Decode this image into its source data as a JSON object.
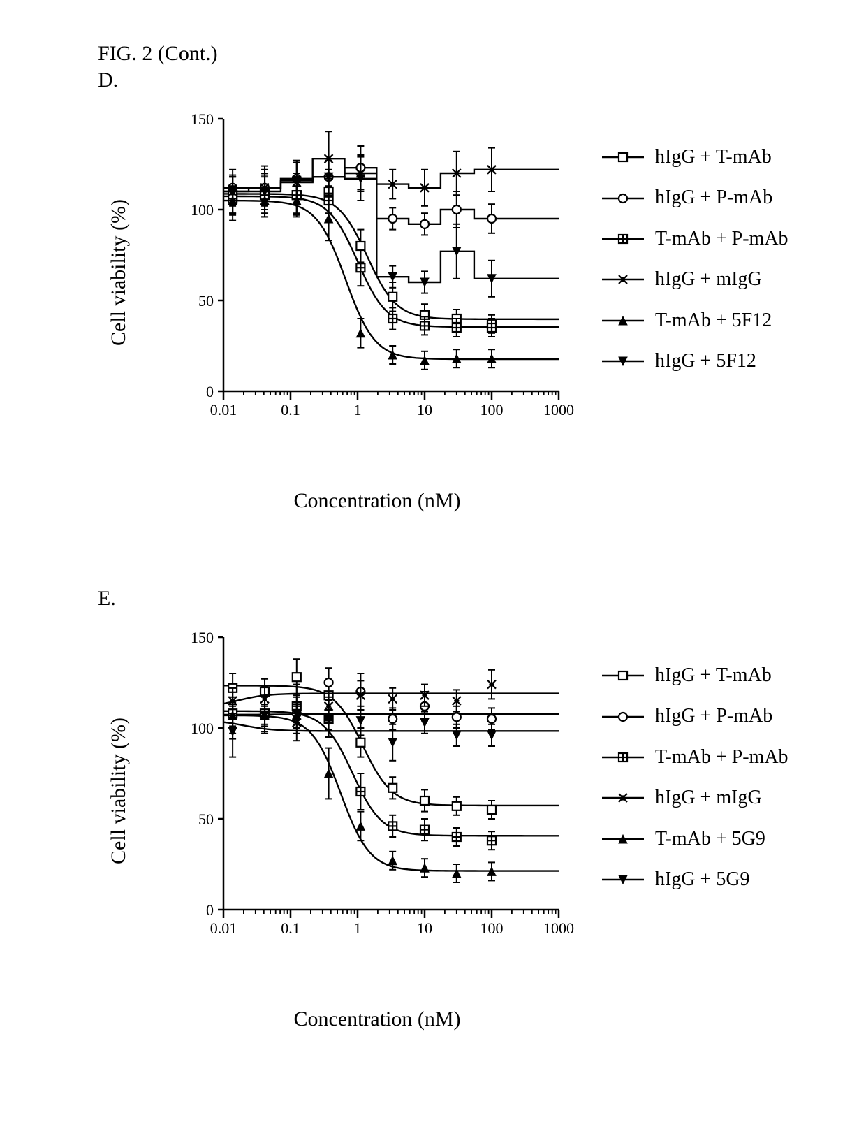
{
  "figure_title": "FIG. 2 (Cont.)",
  "colors": {
    "background": "#ffffff",
    "ink": "#000000",
    "axis": "#000000",
    "series": "#000000"
  },
  "fonts": {
    "family": "Times New Roman",
    "title_size_pt": 22,
    "axis_label_size_pt": 22,
    "tick_size_pt": 18,
    "legend_size_pt": 20
  },
  "axis_common": {
    "xlabel": "Concentration (nM)",
    "ylabel": "Cell viability (%)",
    "xscale": "log10",
    "xlim": [
      0.01,
      1000
    ],
    "x_ticks": [
      0.01,
      0.1,
      1,
      10,
      100,
      1000
    ],
    "x_tick_labels": [
      "0.01",
      "0.1",
      "1",
      "10",
      "100",
      "1000"
    ],
    "ylim": [
      0,
      150
    ],
    "y_ticks": [
      0,
      50,
      100,
      150
    ],
    "grid": false,
    "tick_len": 8,
    "axis_line_width": 2.5
  },
  "panels": [
    {
      "id": "D",
      "label": "D.",
      "series": [
        {
          "name": "hIgG + T-mAb",
          "marker": "square-open",
          "marker_size": 12,
          "line_style": "curve",
          "x": [
            0.0137,
            0.0412,
            0.1235,
            0.3704,
            1.111,
            3.333,
            10,
            30,
            100
          ],
          "y": [
            108,
            110,
            108,
            110,
            80,
            52,
            42,
            40,
            37
          ],
          "err": [
            10,
            12,
            10,
            12,
            9,
            8,
            6,
            5,
            5
          ]
        },
        {
          "name": "hIgG + P-mAb",
          "marker": "circle-open",
          "marker_size": 12,
          "line_style": "step",
          "x": [
            0.0137,
            0.0412,
            0.1235,
            0.3704,
            1.111,
            3.333,
            10,
            30,
            100
          ],
          "y": [
            112,
            112,
            117,
            118,
            123,
            95,
            92,
            100,
            95
          ],
          "err": [
            7,
            7,
            10,
            9,
            12,
            6,
            6,
            10,
            8
          ]
        },
        {
          "name": "T-mAb + P-mAb",
          "marker": "square-crossed",
          "marker_size": 12,
          "line_style": "curve",
          "x": [
            0.0137,
            0.0412,
            0.1235,
            0.3704,
            1.111,
            3.333,
            10,
            30,
            100
          ],
          "y": [
            106,
            108,
            108,
            105,
            68,
            40,
            36,
            35,
            35
          ],
          "err": [
            12,
            12,
            12,
            12,
            10,
            6,
            5,
            5,
            5
          ]
        },
        {
          "name": "hIgG + mIgG",
          "marker": "x-star",
          "marker_size": 12,
          "line_style": "step",
          "x": [
            0.0137,
            0.0412,
            0.1235,
            0.3704,
            1.111,
            3.333,
            10,
            30,
            100
          ],
          "y": [
            110,
            112,
            115,
            128,
            120,
            114,
            112,
            120,
            122
          ],
          "err": [
            12,
            12,
            12,
            15,
            10,
            8,
            10,
            12,
            12
          ]
        },
        {
          "name": "T-mAb + 5F12",
          "marker": "triangle-up-filled",
          "marker_size": 12,
          "line_style": "curve",
          "x": [
            0.0137,
            0.0412,
            0.1235,
            0.3704,
            1.111,
            3.333,
            10,
            30,
            100
          ],
          "y": [
            105,
            105,
            105,
            95,
            32,
            20,
            17,
            18,
            18
          ],
          "err": [
            8,
            9,
            8,
            12,
            8,
            5,
            5,
            5,
            5
          ]
        },
        {
          "name": "hIgG + 5F12",
          "marker": "triangle-down-filled",
          "marker_size": 12,
          "line_style": "step",
          "x": [
            0.0137,
            0.0412,
            0.1235,
            0.3704,
            1.111,
            3.333,
            10,
            30,
            100
          ],
          "y": [
            110,
            110,
            116,
            118,
            117,
            63,
            60,
            77,
            62
          ],
          "err": [
            8,
            8,
            10,
            10,
            12,
            6,
            6,
            15,
            10
          ]
        }
      ]
    },
    {
      "id": "E",
      "label": "E.",
      "series": [
        {
          "name": "hIgG + T-mAb",
          "marker": "square-open",
          "marker_size": 12,
          "line_style": "curve",
          "x": [
            0.0137,
            0.0412,
            0.1235,
            0.3704,
            1.111,
            3.333,
            10,
            30,
            100
          ],
          "y": [
            122,
            120,
            128,
            118,
            92,
            67,
            60,
            57,
            55
          ],
          "err": [
            8,
            7,
            10,
            8,
            8,
            6,
            6,
            5,
            5
          ]
        },
        {
          "name": "hIgG + P-mAb",
          "marker": "circle-open",
          "marker_size": 12,
          "line_style": "curve",
          "x": [
            0.0137,
            0.0412,
            0.1235,
            0.3704,
            1.111,
            3.333,
            10,
            30,
            100
          ],
          "y": [
            107,
            107,
            108,
            125,
            120,
            105,
            112,
            106,
            105
          ],
          "err": [
            6,
            5,
            5,
            8,
            10,
            6,
            8,
            6,
            6
          ]
        },
        {
          "name": "T-mAb + P-mAb",
          "marker": "square-crossed",
          "marker_size": 12,
          "line_style": "curve",
          "x": [
            0.0137,
            0.0412,
            0.1235,
            0.3704,
            1.111,
            3.333,
            10,
            30,
            100
          ],
          "y": [
            108,
            108,
            112,
            105,
            65,
            46,
            44,
            40,
            38
          ],
          "err": [
            14,
            10,
            12,
            10,
            10,
            6,
            6,
            5,
            5
          ]
        },
        {
          "name": "hIgG + mIgG",
          "marker": "x-star",
          "marker_size": 12,
          "line_style": "curve",
          "x": [
            0.0137,
            0.0412,
            0.1235,
            0.3704,
            1.111,
            3.333,
            10,
            30,
            100
          ],
          "y": [
            115,
            116,
            103,
            112,
            118,
            116,
            118,
            115,
            124
          ],
          "err": [
            7,
            7,
            10,
            8,
            8,
            6,
            6,
            6,
            8
          ]
        },
        {
          "name": "T-mAb + 5G9",
          "marker": "triangle-up-filled",
          "marker_size": 12,
          "line_style": "curve",
          "x": [
            0.0137,
            0.0412,
            0.1235,
            0.3704,
            1.111,
            3.333,
            10,
            30,
            100
          ],
          "y": [
            107,
            107,
            107,
            75,
            46,
            27,
            23,
            20,
            21
          ],
          "err": [
            10,
            10,
            10,
            14,
            8,
            5,
            5,
            5,
            5
          ]
        },
        {
          "name": "hIgG + 5G9",
          "marker": "triangle-down-filled",
          "marker_size": 12,
          "line_style": "curve",
          "x": [
            0.0137,
            0.0412,
            0.1235,
            0.3704,
            1.111,
            3.333,
            10,
            30,
            100
          ],
          "y": [
            98,
            107,
            108,
            105,
            104,
            92,
            103,
            96,
            96
          ],
          "err": [
            14,
            6,
            6,
            6,
            8,
            10,
            6,
            6,
            6
          ]
        }
      ]
    }
  ]
}
